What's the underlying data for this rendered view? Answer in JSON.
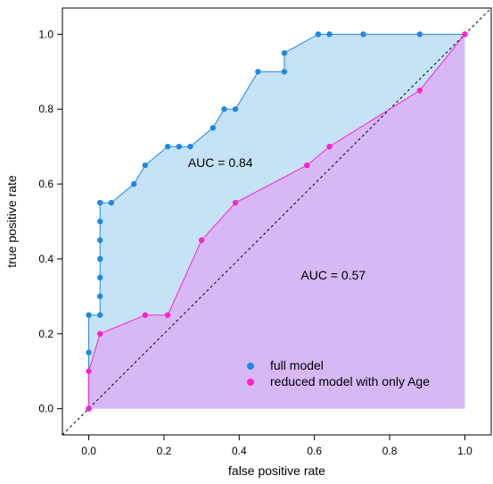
{
  "chart_data": {
    "type": "line",
    "title": "",
    "xlabel": "false positive rate",
    "ylabel": "true positive rate",
    "xlim": [
      -0.07,
      1.07
    ],
    "ylim": [
      -0.07,
      1.07
    ],
    "x_ticks": [
      0.0,
      0.2,
      0.4,
      0.6,
      0.8,
      1.0
    ],
    "y_ticks": [
      0.0,
      0.2,
      0.4,
      0.6,
      0.8,
      1.0
    ],
    "x_tick_labels": [
      "0.0",
      "0.2",
      "0.4",
      "0.6",
      "0.8",
      "1.0"
    ],
    "y_tick_labels": [
      "0.0",
      "0.2",
      "0.4",
      "0.6",
      "0.8",
      "1.0"
    ],
    "grid": false,
    "diagonal_reference": true,
    "legend_position": "bottom-right",
    "series": [
      {
        "name": "full model",
        "color": "#1e88e5",
        "fill": "#c6e2f7",
        "x": [
          0.0,
          0.0,
          0.0,
          0.03,
          0.03,
          0.03,
          0.03,
          0.03,
          0.03,
          0.03,
          0.03,
          0.06,
          0.12,
          0.15,
          0.21,
          0.24,
          0.27,
          0.33,
          0.36,
          0.39,
          0.45,
          0.52,
          0.52,
          0.61,
          0.64,
          0.73,
          0.88,
          1.0
        ],
        "y": [
          0.0,
          0.15,
          0.25,
          0.25,
          0.3,
          0.35,
          0.4,
          0.45,
          0.5,
          0.55,
          0.55,
          0.55,
          0.6,
          0.65,
          0.7,
          0.7,
          0.7,
          0.75,
          0.8,
          0.8,
          0.9,
          0.9,
          0.95,
          1.0,
          1.0,
          1.0,
          1.0,
          1.0
        ]
      },
      {
        "name": "reduced model with only Age",
        "color": "#ff22cc",
        "fill": "#d6b8f5",
        "x": [
          0.0,
          0.0,
          0.03,
          0.15,
          0.21,
          0.3,
          0.39,
          0.58,
          0.64,
          0.88,
          1.0
        ],
        "y": [
          0.0,
          0.1,
          0.2,
          0.25,
          0.25,
          0.45,
          0.55,
          0.65,
          0.7,
          0.85,
          1.0
        ]
      }
    ],
    "annotations": [
      {
        "text": "AUC = 0.84",
        "x": 0.35,
        "y": 0.645
      },
      {
        "text": "AUC = 0.57",
        "x": 0.65,
        "y": 0.345
      }
    ]
  }
}
